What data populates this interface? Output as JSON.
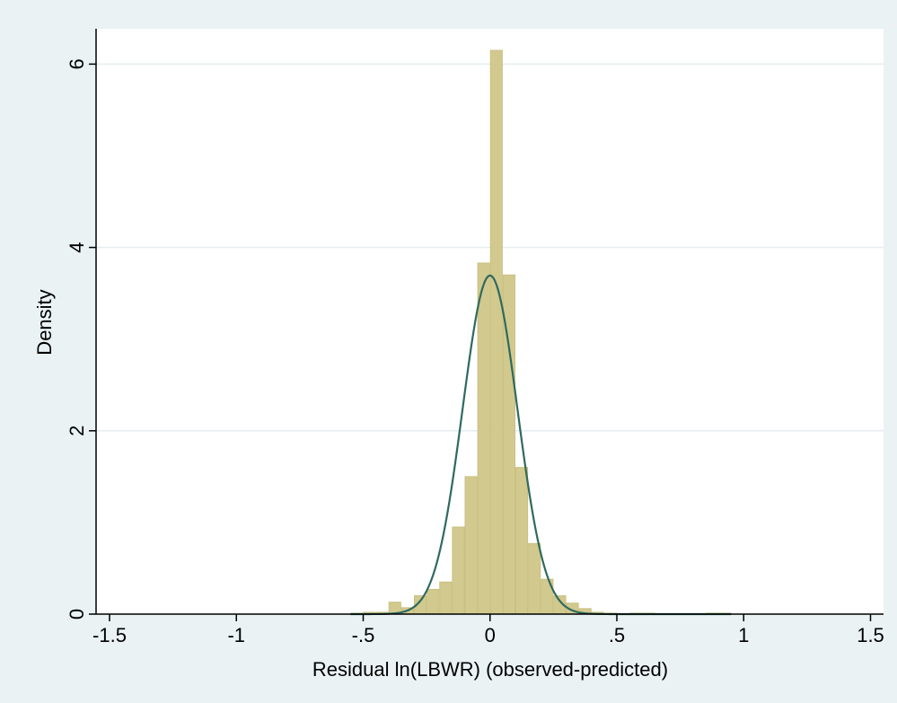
{
  "chart_data": {
    "type": "histogram",
    "title": "",
    "xlabel": "Residual ln(LBWR) (observed-predicted)",
    "ylabel": "Density",
    "xlim": [
      -1.55,
      1.55
    ],
    "ylim": [
      0,
      6.35
    ],
    "x_ticks": [
      -1.5,
      -1,
      -0.5,
      0,
      0.5,
      1,
      1.5
    ],
    "x_tick_labels": [
      "-1.5",
      "-1",
      "-.5",
      "0",
      ".5",
      "1",
      "1.5"
    ],
    "y_ticks": [
      0,
      2,
      4,
      6
    ],
    "y_tick_labels": [
      "0",
      "2",
      "4",
      "6"
    ],
    "grid": "horizontal",
    "bin_width": 0.05,
    "bins": [
      {
        "x0": -0.55,
        "x1": -0.5,
        "density": 0.01
      },
      {
        "x0": -0.5,
        "x1": -0.45,
        "density": 0.02
      },
      {
        "x0": -0.45,
        "x1": -0.4,
        "density": 0.02
      },
      {
        "x0": -0.4,
        "x1": -0.35,
        "density": 0.13
      },
      {
        "x0": -0.35,
        "x1": -0.3,
        "density": 0.07
      },
      {
        "x0": -0.3,
        "x1": -0.25,
        "density": 0.2
      },
      {
        "x0": -0.25,
        "x1": -0.2,
        "density": 0.27
      },
      {
        "x0": -0.2,
        "x1": -0.15,
        "density": 0.35
      },
      {
        "x0": -0.15,
        "x1": -0.1,
        "density": 0.95
      },
      {
        "x0": -0.1,
        "x1": -0.05,
        "density": 1.5
      },
      {
        "x0": -0.05,
        "x1": 0.0,
        "density": 3.83
      },
      {
        "x0": 0.0,
        "x1": 0.05,
        "density": 6.15
      },
      {
        "x0": 0.05,
        "x1": 0.1,
        "density": 3.7
      },
      {
        "x0": 0.1,
        "x1": 0.15,
        "density": 1.6
      },
      {
        "x0": 0.15,
        "x1": 0.2,
        "density": 0.77
      },
      {
        "x0": 0.2,
        "x1": 0.25,
        "density": 0.38
      },
      {
        "x0": 0.25,
        "x1": 0.3,
        "density": 0.2
      },
      {
        "x0": 0.3,
        "x1": 0.35,
        "density": 0.12
      },
      {
        "x0": 0.35,
        "x1": 0.4,
        "density": 0.06
      },
      {
        "x0": 0.4,
        "x1": 0.45,
        "density": 0.02
      },
      {
        "x0": 0.45,
        "x1": 0.5,
        "density": 0.01
      },
      {
        "x0": 0.55,
        "x1": 0.6,
        "density": 0.005
      },
      {
        "x0": 0.6,
        "x1": 0.65,
        "density": 0.01
      },
      {
        "x0": 0.85,
        "x1": 0.9,
        "density": 0.005
      },
      {
        "x0": 0.9,
        "x1": 0.95,
        "density": 0.005
      }
    ],
    "normal_curve": {
      "mean": 0.0,
      "sd": 0.108,
      "x_range": [
        -0.55,
        0.95
      ]
    },
    "colors": {
      "background": "#eaf2f3",
      "plot_area": "#ffffff",
      "bar_fill": "#d2c98f",
      "bar_stroke": "#c9c080",
      "curve": "#2f6a5e",
      "grid": "#e3eef0",
      "axis": "#000000"
    }
  }
}
